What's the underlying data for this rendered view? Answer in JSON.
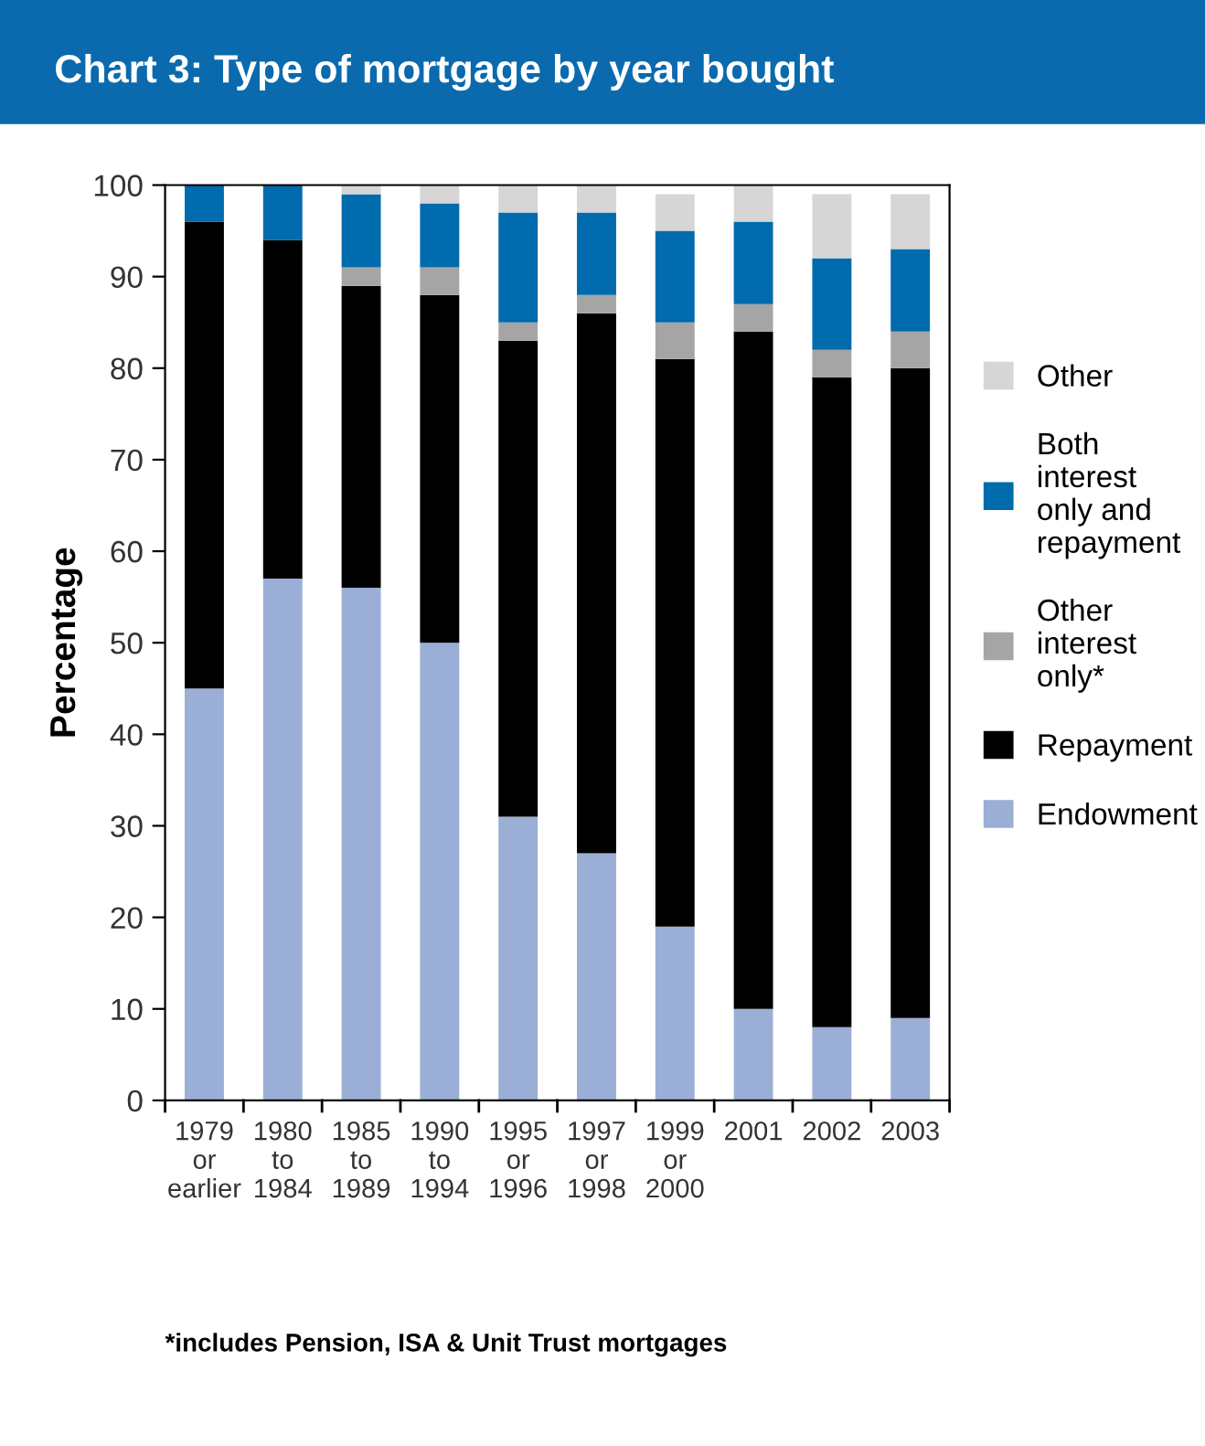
{
  "chart_data": {
    "type": "bar",
    "title": "Chart 3: Type of mortgage by year bought",
    "ylabel": "Percentage",
    "categories": [
      "1979\nor\nearlier",
      "1980\nto\n1984",
      "1985\nto\n1989",
      "1990\nto\n1994",
      "1995\nor\n1996",
      "1997\nor\n1998",
      "1999\nor\n2000",
      "2001",
      "2002",
      "2003"
    ],
    "stacked": true,
    "series": [
      {
        "name": "Endowment",
        "color": "#9bafd6",
        "values": [
          45,
          57,
          56,
          50,
          31,
          27,
          19,
          10,
          8,
          9
        ]
      },
      {
        "name": "Repayment",
        "color": "#000000",
        "values": [
          51,
          37,
          33,
          38,
          52,
          59,
          62,
          74,
          71,
          71
        ]
      },
      {
        "name": "Other\ninterest\nonly*",
        "color": "#a5a5a5",
        "values": [
          0,
          0,
          2,
          3,
          2,
          2,
          4,
          3,
          3,
          4
        ]
      },
      {
        "name": "Both\ninterest\nonly and\nrepayment",
        "color": "#006bad",
        "values": [
          4,
          6,
          8,
          7,
          12,
          9,
          10,
          9,
          10,
          9
        ]
      },
      {
        "name": "Other",
        "color": "#d6d6d6",
        "values": [
          0,
          0,
          1,
          2,
          3,
          3,
          4,
          4,
          7,
          6
        ]
      }
    ],
    "ylim": [
      0,
      100
    ],
    "yticks": [
      0,
      10,
      20,
      30,
      40,
      50,
      60,
      70,
      80,
      90,
      100
    ],
    "grid": false,
    "legend": "right",
    "annotations": [
      "*includes Pension, ISA & Unit Trust mortgages"
    ]
  }
}
